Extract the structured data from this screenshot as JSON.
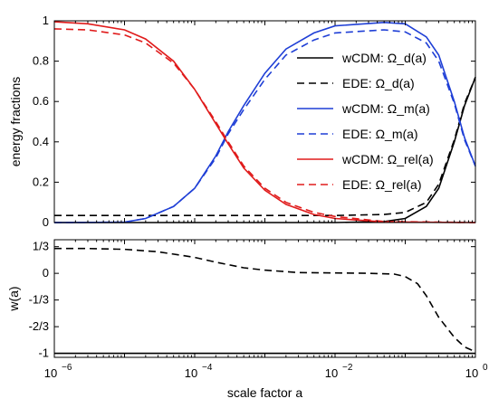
{
  "chart_data": [
    {
      "type": "line",
      "xscale": "log",
      "xlim": [
        1e-06,
        1
      ],
      "ylim": [
        0,
        1
      ],
      "ylabel": "energy fractions",
      "yticks": [
        {
          "v": 0,
          "label": "0"
        },
        {
          "v": 0.2,
          "label": "0.2"
        },
        {
          "v": 0.4,
          "label": "0.4"
        },
        {
          "v": 0.6,
          "label": "0.6"
        },
        {
          "v": 0.8,
          "label": "0.8"
        },
        {
          "v": 1,
          "label": "1"
        }
      ],
      "grid": false,
      "legend_position": "right",
      "series": [
        {
          "name": "wCDM: Ω_d(a)",
          "model": "wCDM",
          "component": "d",
          "color": "#000000",
          "dash": "solid",
          "x": [
            1e-06,
            1e-05,
            0.0001,
            0.001,
            0.01,
            0.05,
            0.1,
            0.2,
            0.3,
            0.5,
            0.7,
            1
          ],
          "y": [
            0,
            0,
            0,
            0,
            0,
            0.005,
            0.02,
            0.08,
            0.17,
            0.4,
            0.58,
            0.72
          ]
        },
        {
          "name": "EDE: Ω_d(a)",
          "model": "EDE",
          "component": "d",
          "color": "#000000",
          "dash": "dashed",
          "x": [
            1e-06,
            1e-05,
            0.0001,
            0.001,
            0.01,
            0.05,
            0.1,
            0.2,
            0.3,
            0.5,
            0.7,
            1
          ],
          "y": [
            0.035,
            0.035,
            0.035,
            0.035,
            0.035,
            0.04,
            0.05,
            0.1,
            0.19,
            0.41,
            0.59,
            0.72
          ]
        },
        {
          "name": "wCDM: Ω_m(a)",
          "model": "wCDM",
          "component": "m",
          "color": "#1f3fd6",
          "dash": "solid",
          "x": [
            1e-06,
            1e-05,
            2e-05,
            5e-05,
            0.0001,
            0.0002,
            0.0003,
            0.0005,
            0.001,
            0.002,
            0.005,
            0.01,
            0.05,
            0.1,
            0.2,
            0.3,
            0.5,
            0.7,
            1
          ],
          "y": [
            0,
            0.002,
            0.02,
            0.08,
            0.17,
            0.33,
            0.45,
            0.58,
            0.74,
            0.86,
            0.94,
            0.975,
            0.992,
            0.985,
            0.92,
            0.83,
            0.6,
            0.42,
            0.28
          ]
        },
        {
          "name": "EDE: Ω_m(a)",
          "model": "EDE",
          "component": "m",
          "color": "#1f3fd6",
          "dash": "dashed",
          "x": [
            1e-06,
            1e-05,
            2e-05,
            5e-05,
            0.0001,
            0.0002,
            0.0003,
            0.0005,
            0.001,
            0.002,
            0.005,
            0.01,
            0.05,
            0.1,
            0.2,
            0.3,
            0.5,
            0.7,
            1
          ],
          "y": [
            0,
            0.002,
            0.02,
            0.08,
            0.17,
            0.32,
            0.44,
            0.56,
            0.71,
            0.83,
            0.905,
            0.94,
            0.955,
            0.945,
            0.89,
            0.8,
            0.59,
            0.41,
            0.28
          ]
        },
        {
          "name": "wCDM: Ω_rel(a)",
          "model": "wCDM",
          "component": "rel",
          "color": "#e01b1b",
          "dash": "solid",
          "x": [
            1e-06,
            3e-06,
            1e-05,
            2e-05,
            5e-05,
            0.0001,
            0.0002,
            0.0003,
            0.0005,
            0.001,
            0.002,
            0.005,
            0.01,
            0.05,
            1
          ],
          "y": [
            0.995,
            0.985,
            0.955,
            0.91,
            0.8,
            0.66,
            0.49,
            0.39,
            0.27,
            0.16,
            0.09,
            0.04,
            0.02,
            0.003,
            0
          ]
        },
        {
          "name": "EDE: Ω_rel(a)",
          "model": "EDE",
          "component": "rel",
          "color": "#e01b1b",
          "dash": "dashed",
          "x": [
            1e-06,
            3e-06,
            1e-05,
            2e-05,
            5e-05,
            0.0001,
            0.0002,
            0.0003,
            0.0005,
            0.001,
            0.002,
            0.005,
            0.01,
            0.05,
            1
          ],
          "y": [
            0.96,
            0.955,
            0.93,
            0.89,
            0.79,
            0.66,
            0.5,
            0.4,
            0.28,
            0.17,
            0.1,
            0.05,
            0.03,
            0.005,
            0
          ]
        }
      ]
    },
    {
      "type": "line",
      "xscale": "log",
      "xlim": [
        1e-06,
        1
      ],
      "ylim": [
        -1.05,
        0.42
      ],
      "xlabel": "scale factor  a",
      "ylabel": "w(a)",
      "yticks": [
        {
          "v": 0.3333,
          "label": "1/3"
        },
        {
          "v": 0,
          "label": "0"
        },
        {
          "v": -0.3333,
          "label": "-1/3"
        },
        {
          "v": -0.6667,
          "label": "-2/3"
        },
        {
          "v": -1,
          "label": "-1"
        }
      ],
      "xticks": [
        {
          "v": 1e-06,
          "base": "10",
          "exp": "−6"
        },
        {
          "v": 0.0001,
          "base": "10",
          "exp": "−4"
        },
        {
          "v": 0.01,
          "base": "10",
          "exp": "−2"
        },
        {
          "v": 1,
          "base": "10",
          "exp": "0"
        }
      ],
      "grid": false,
      "series": [
        {
          "model": "wCDM",
          "color": "#000000",
          "dash": "solid",
          "x": [
            1e-06,
            1
          ],
          "y": [
            -1,
            -1
          ]
        },
        {
          "model": "EDE",
          "color": "#000000",
          "dash": "dashed",
          "x": [
            1e-06,
            3e-06,
            1e-05,
            3e-05,
            0.0001,
            0.0002,
            0.0005,
            0.001,
            0.003,
            0.01,
            0.03,
            0.07,
            0.1,
            0.15,
            0.2,
            0.3,
            0.5,
            0.7,
            1
          ],
          "y": [
            0.31,
            0.31,
            0.3,
            0.27,
            0.2,
            0.14,
            0.07,
            0.04,
            0.01,
            0.005,
            0.0,
            -0.01,
            -0.04,
            -0.13,
            -0.28,
            -0.55,
            -0.8,
            -0.92,
            -0.98
          ]
        }
      ]
    }
  ]
}
